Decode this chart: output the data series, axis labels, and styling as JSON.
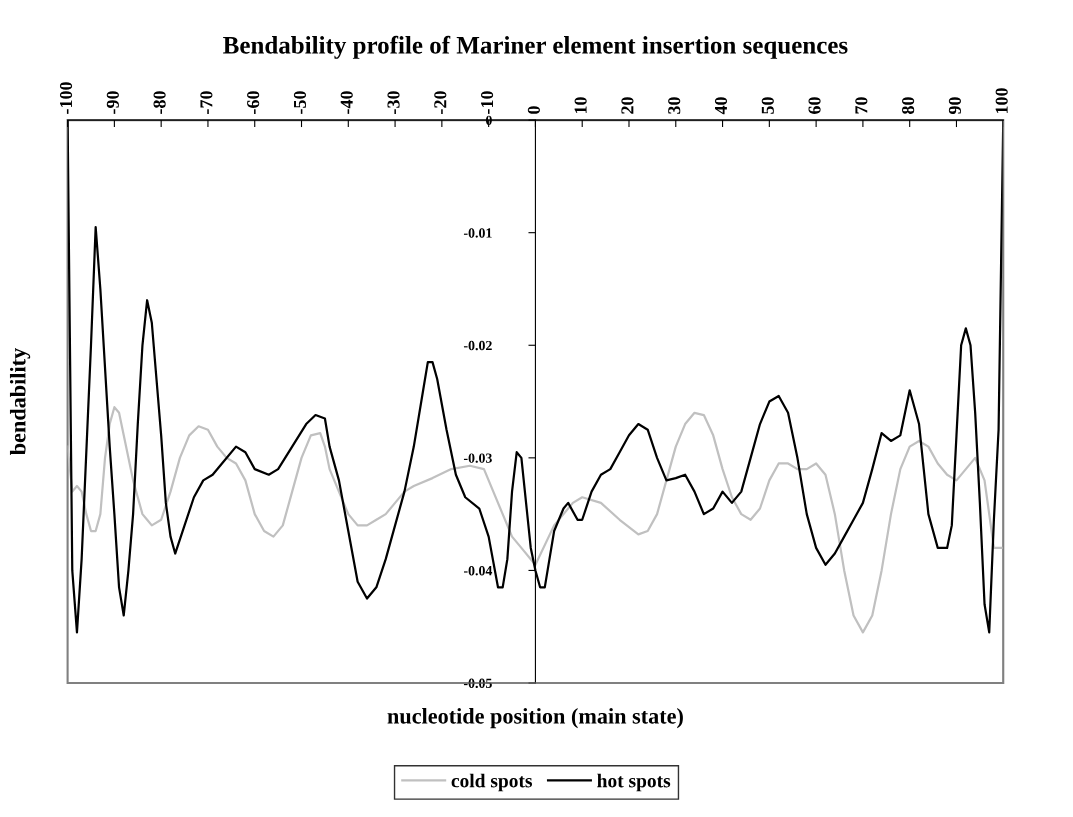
{
  "chart_data": {
    "type": "line",
    "title": "Bendability profile of Mariner element insertion sequences",
    "xlabel": "nucleotide position (main state)",
    "ylabel": "bendability",
    "xlim": [
      -100,
      100
    ],
    "xticks": [
      -100,
      -90,
      -80,
      -70,
      -60,
      -50,
      -40,
      -30,
      -20,
      -10,
      0,
      10,
      20,
      30,
      40,
      50,
      60,
      70,
      80,
      90,
      100
    ],
    "ylim": [
      -0.05,
      0
    ],
    "yticks": [
      0,
      -0.01,
      -0.02,
      -0.03,
      -0.04,
      -0.05
    ],
    "legend": "bottom",
    "line_style": "solid",
    "series": [
      {
        "name": "cold spots",
        "color": "#c0c0c0",
        "x": [
          -100,
          -99,
          -98,
          -97,
          -96,
          -95,
          -94,
          -93,
          -92,
          -91,
          -90,
          -89,
          -88,
          -87,
          -86,
          -85,
          -84,
          -83,
          -82,
          -80,
          -78,
          -76,
          -74,
          -72,
          -70,
          -68,
          -66,
          -64,
          -62,
          -60,
          -58,
          -56,
          -54,
          -52,
          -50,
          -48,
          -46,
          -45,
          -44,
          -42,
          -40,
          -38,
          -36,
          -34,
          -32,
          -30,
          -28,
          -26,
          -22,
          -18,
          -14,
          -11,
          -9,
          -7,
          -5,
          -3,
          -1,
          0,
          4,
          8,
          10,
          14,
          18,
          22,
          24,
          26,
          28,
          30,
          32,
          34,
          36,
          38,
          40,
          42,
          44,
          46,
          48,
          50,
          52,
          54,
          56,
          58,
          60,
          62,
          64,
          66,
          68,
          70,
          72,
          74,
          76,
          78,
          80,
          82,
          84,
          86,
          88,
          90,
          92,
          94,
          96,
          98,
          100
        ],
        "values": [
          -0.029,
          -0.033,
          -0.0325,
          -0.033,
          -0.035,
          -0.0365,
          -0.0365,
          -0.035,
          -0.03,
          -0.027,
          -0.0255,
          -0.026,
          -0.028,
          -0.03,
          -0.032,
          -0.0335,
          -0.035,
          -0.0355,
          -0.036,
          -0.0355,
          -0.033,
          -0.03,
          -0.028,
          -0.0272,
          -0.0275,
          -0.029,
          -0.03,
          -0.0305,
          -0.032,
          -0.035,
          -0.0365,
          -0.037,
          -0.036,
          -0.033,
          -0.03,
          -0.028,
          -0.0278,
          -0.029,
          -0.031,
          -0.033,
          -0.035,
          -0.036,
          -0.036,
          -0.0355,
          -0.035,
          -0.034,
          -0.033,
          -0.0325,
          -0.0318,
          -0.031,
          -0.0307,
          -0.031,
          -0.033,
          -0.035,
          -0.037,
          -0.038,
          -0.039,
          -0.0395,
          -0.036,
          -0.034,
          -0.0335,
          -0.034,
          -0.0355,
          -0.0368,
          -0.0365,
          -0.035,
          -0.032,
          -0.029,
          -0.027,
          -0.026,
          -0.0262,
          -0.028,
          -0.031,
          -0.0335,
          -0.035,
          -0.0355,
          -0.0345,
          -0.032,
          -0.0305,
          -0.0305,
          -0.031,
          -0.031,
          -0.0305,
          -0.0315,
          -0.035,
          -0.04,
          -0.044,
          -0.0455,
          -0.044,
          -0.04,
          -0.035,
          -0.031,
          -0.029,
          -0.0285,
          -0.029,
          -0.0305,
          -0.0315,
          -0.032,
          -0.031,
          -0.03,
          -0.032,
          -0.038,
          -0.038
        ]
      },
      {
        "name": "hot spots",
        "color": "#000000",
        "x": [
          -100,
          -99,
          -98,
          -97,
          -95,
          -94,
          -93,
          -91,
          -90,
          -89,
          -88,
          -87,
          -86,
          -85,
          -84,
          -83,
          -82,
          -80,
          -79,
          -78,
          -77,
          -75,
          -73,
          -71,
          -69,
          -67,
          -64,
          -62,
          -60,
          -57,
          -55,
          -52,
          -49,
          -47,
          -45,
          -44,
          -42,
          -40,
          -38,
          -36,
          -34,
          -32,
          -30,
          -28,
          -26,
          -24,
          -23,
          -22,
          -21,
          -19,
          -17,
          -15,
          -12,
          -10,
          -8,
          -7,
          -6,
          -5,
          -4,
          -3,
          -2,
          -1,
          0,
          1,
          2,
          3,
          4,
          6,
          7,
          9,
          10,
          12,
          14,
          16,
          18,
          20,
          22,
          24,
          26,
          28,
          30,
          32,
          34,
          36,
          38,
          40,
          42,
          44,
          46,
          48,
          50,
          52,
          54,
          56,
          58,
          60,
          62,
          64,
          66,
          68,
          70,
          72,
          74,
          76,
          78,
          80,
          82,
          83,
          84,
          86,
          88,
          89,
          90,
          91,
          92,
          93,
          94,
          95,
          96,
          97,
          98,
          99,
          100
        ],
        "values": [
          0,
          -0.04,
          -0.0455,
          -0.039,
          -0.02,
          -0.0095,
          -0.015,
          -0.029,
          -0.035,
          -0.0415,
          -0.044,
          -0.04,
          -0.035,
          -0.027,
          -0.02,
          -0.016,
          -0.018,
          -0.028,
          -0.034,
          -0.037,
          -0.0385,
          -0.036,
          -0.0335,
          -0.032,
          -0.0315,
          -0.0305,
          -0.029,
          -0.0295,
          -0.031,
          -0.0315,
          -0.031,
          -0.029,
          -0.027,
          -0.0262,
          -0.0265,
          -0.029,
          -0.032,
          -0.0365,
          -0.041,
          -0.0425,
          -0.0415,
          -0.039,
          -0.036,
          -0.033,
          -0.029,
          -0.024,
          -0.0215,
          -0.0215,
          -0.023,
          -0.0275,
          -0.0315,
          -0.0335,
          -0.0345,
          -0.037,
          -0.0415,
          -0.0415,
          -0.039,
          -0.033,
          -0.0295,
          -0.03,
          -0.034,
          -0.038,
          -0.04,
          -0.0415,
          -0.0415,
          -0.039,
          -0.0365,
          -0.0345,
          -0.034,
          -0.0355,
          -0.0355,
          -0.033,
          -0.0315,
          -0.031,
          -0.0295,
          -0.028,
          -0.027,
          -0.0275,
          -0.03,
          -0.032,
          -0.0318,
          -0.0315,
          -0.033,
          -0.035,
          -0.0345,
          -0.033,
          -0.034,
          -0.033,
          -0.03,
          -0.027,
          -0.025,
          -0.0245,
          -0.026,
          -0.03,
          -0.035,
          -0.038,
          -0.0395,
          -0.0385,
          -0.037,
          -0.0355,
          -0.034,
          -0.031,
          -0.0278,
          -0.0285,
          -0.028,
          -0.024,
          -0.027,
          -0.031,
          -0.035,
          -0.038,
          -0.038,
          -0.036,
          -0.028,
          -0.02,
          -0.0185,
          -0.02,
          -0.026,
          -0.034,
          -0.043,
          -0.0455,
          -0.0355,
          -0.0275,
          0
        ]
      }
    ]
  }
}
